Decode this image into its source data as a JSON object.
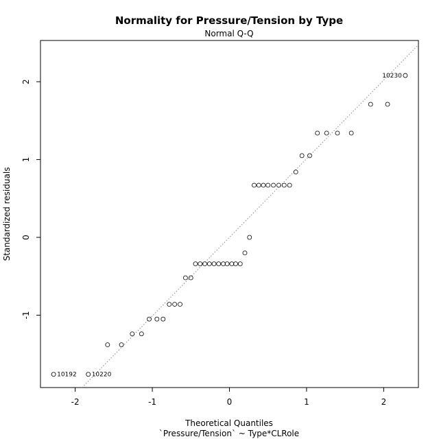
{
  "chart_data": {
    "type": "scatter",
    "title": "Normality for Pressure/Tension by Type",
    "subtitle": "Normal Q-Q",
    "xlabel": "Theoretical Quantiles",
    "xlabel2": "`Pressure/Tension` ~ Type*CLRole",
    "ylabel": "Standardized residuals",
    "xlim": [
      -2.45,
      2.45
    ],
    "ylim": [
      -1.93,
      2.53
    ],
    "x_ticks": [
      -2,
      -1,
      0,
      1,
      2
    ],
    "y_ticks": [
      -1,
      0,
      1,
      2
    ],
    "x_tick_labels": [
      "-2",
      "-1",
      "0",
      "1",
      "2"
    ],
    "y_tick_labels": [
      "-1",
      "0",
      "1",
      "2"
    ],
    "reference_line": {
      "intercept": 0,
      "slope": 1.01,
      "style": "dotted"
    },
    "grid": false,
    "points": [
      {
        "x": -2.28,
        "y": -1.76
      },
      {
        "x": -1.83,
        "y": -1.76
      },
      {
        "x": -1.58,
        "y": -1.38
      },
      {
        "x": -1.4,
        "y": -1.38
      },
      {
        "x": -1.26,
        "y": -1.24
      },
      {
        "x": -1.14,
        "y": -1.24
      },
      {
        "x": -1.04,
        "y": -1.05
      },
      {
        "x": -0.94,
        "y": -1.05
      },
      {
        "x": -0.86,
        "y": -1.05
      },
      {
        "x": -0.78,
        "y": -0.86
      },
      {
        "x": -0.71,
        "y": -0.86
      },
      {
        "x": -0.64,
        "y": -0.86
      },
      {
        "x": -0.57,
        "y": -0.52
      },
      {
        "x": -0.5,
        "y": -0.52
      },
      {
        "x": -0.44,
        "y": -0.34
      },
      {
        "x": -0.38,
        "y": -0.34
      },
      {
        "x": -0.32,
        "y": -0.34
      },
      {
        "x": -0.26,
        "y": -0.34
      },
      {
        "x": -0.2,
        "y": -0.34
      },
      {
        "x": -0.14,
        "y": -0.34
      },
      {
        "x": -0.08,
        "y": -0.34
      },
      {
        "x": -0.03,
        "y": -0.34
      },
      {
        "x": 0.03,
        "y": -0.34
      },
      {
        "x": 0.08,
        "y": -0.34
      },
      {
        "x": 0.14,
        "y": -0.34
      },
      {
        "x": 0.2,
        "y": -0.2
      },
      {
        "x": 0.26,
        "y": 0.0
      },
      {
        "x": 0.32,
        "y": 0.67
      },
      {
        "x": 0.38,
        "y": 0.67
      },
      {
        "x": 0.44,
        "y": 0.67
      },
      {
        "x": 0.5,
        "y": 0.67
      },
      {
        "x": 0.57,
        "y": 0.67
      },
      {
        "x": 0.64,
        "y": 0.67
      },
      {
        "x": 0.71,
        "y": 0.67
      },
      {
        "x": 0.78,
        "y": 0.67
      },
      {
        "x": 0.86,
        "y": 0.84
      },
      {
        "x": 0.94,
        "y": 1.05
      },
      {
        "x": 1.04,
        "y": 1.05
      },
      {
        "x": 1.14,
        "y": 1.34
      },
      {
        "x": 1.26,
        "y": 1.34
      },
      {
        "x": 1.4,
        "y": 1.34
      },
      {
        "x": 1.58,
        "y": 1.34
      },
      {
        "x": 1.83,
        "y": 1.71
      },
      {
        "x": 2.05,
        "y": 1.71
      },
      {
        "x": 2.28,
        "y": 2.08
      }
    ],
    "annotations": [
      {
        "text": "10192",
        "x": -2.28,
        "y": -1.76,
        "side": "right"
      },
      {
        "text": "10220",
        "x": -1.83,
        "y": -1.76,
        "side": "right"
      },
      {
        "text": "10230",
        "x": 2.28,
        "y": 2.08,
        "side": "left"
      }
    ]
  }
}
